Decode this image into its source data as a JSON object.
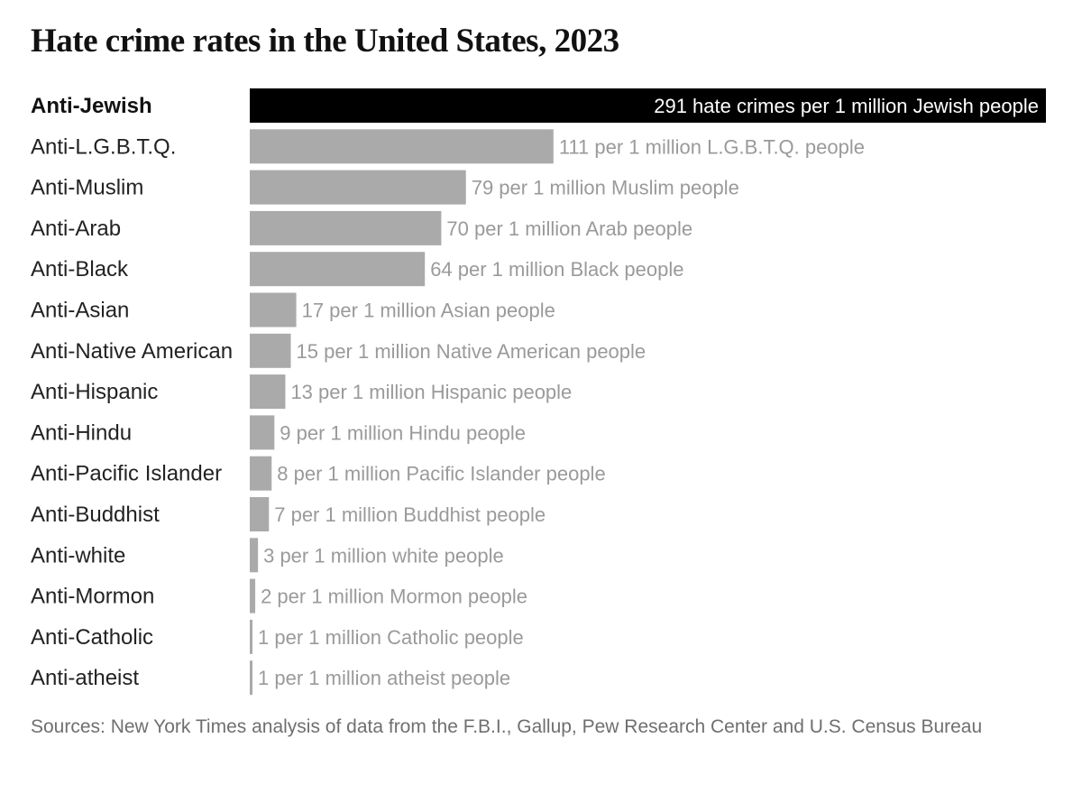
{
  "chart_data": {
    "type": "bar",
    "orientation": "horizontal",
    "title": "Hate crime rates in the United States, 2023",
    "categories": [
      "Anti-Jewish",
      "Anti-L.G.B.T.Q.",
      "Anti-Muslim",
      "Anti-Arab",
      "Anti-Black",
      "Anti-Asian",
      "Anti-Native American",
      "Anti-Hispanic",
      "Anti-Hindu",
      "Anti-Pacific Islander",
      "Anti-Buddhist",
      "Anti-white",
      "Anti-Mormon",
      "Anti-Catholic",
      "Anti-atheist"
    ],
    "values": [
      291,
      111,
      79,
      70,
      64,
      17,
      15,
      13,
      9,
      8,
      7,
      3,
      2,
      1,
      1
    ],
    "data_labels": [
      "291 hate crimes per 1 million Jewish people",
      "111 per 1 million L.G.B.T.Q. people",
      "79 per 1 million Muslim people",
      "70 per 1 million Arab people",
      "64 per 1 million Black people",
      "17 per 1 million Asian people",
      "15 per 1 million Native American people",
      "13 per 1 million Hispanic people",
      "9 per 1 million Hindu people",
      "8 per 1 million Pacific Islander people",
      "7 per 1 million Buddhist people",
      "3 per 1 million white people",
      "2 per 1 million Mormon people",
      "1 per 1 million Catholic people",
      "1 per 1 million atheist people"
    ],
    "highlight_index": 0,
    "xlim": [
      0,
      291
    ],
    "grid": false,
    "legend": "none",
    "colors": {
      "highlight": "#000000",
      "bar": "#aaaaaa",
      "label": "#9a9a9a",
      "highlight_label": "#ffffff"
    },
    "source": "Sources: New York Times analysis of data from the F.B.I., Gallup, Pew Research Center and U.S. Census Bureau"
  }
}
